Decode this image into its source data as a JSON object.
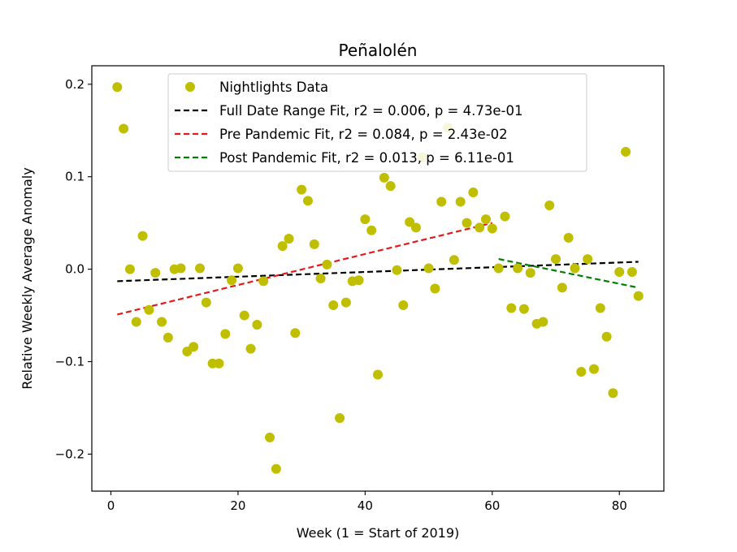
{
  "chart_data": {
    "type": "scatter",
    "title": "Peñalolén",
    "xlabel": "Week (1 = Start of 2019)",
    "ylabel": "Relative Weekly Average Anomaly",
    "xlim": [
      -3,
      87
    ],
    "ylim": [
      -0.24,
      0.22
    ],
    "xticks": [
      0,
      20,
      40,
      60,
      80
    ],
    "xtick_labels": [
      "0",
      "20",
      "40",
      "60",
      "80"
    ],
    "yticks": [
      -0.2,
      -0.1,
      0.0,
      0.1,
      0.2
    ],
    "ytick_labels": [
      "−0.2",
      "−0.1",
      "0.0",
      "0.1",
      "0.2"
    ],
    "grid": false,
    "legend_position": "top-center",
    "series": [
      {
        "name": "Nightlights Data",
        "kind": "scatter",
        "color": "#bfbf00",
        "points": [
          [
            1,
            0.197
          ],
          [
            2,
            0.152
          ],
          [
            3,
            0.0
          ],
          [
            4,
            -0.057
          ],
          [
            5,
            0.036
          ],
          [
            6,
            -0.044
          ],
          [
            7,
            -0.004
          ],
          [
            8,
            -0.057
          ],
          [
            9,
            -0.074
          ],
          [
            10,
            0.0
          ],
          [
            11,
            0.001
          ],
          [
            12,
            -0.089
          ],
          [
            13,
            -0.084
          ],
          [
            14,
            0.001
          ],
          [
            15,
            -0.036
          ],
          [
            16,
            -0.102
          ],
          [
            17,
            -0.102
          ],
          [
            18,
            -0.07
          ],
          [
            19,
            -0.012
          ],
          [
            20,
            0.001
          ],
          [
            21,
            -0.05
          ],
          [
            22,
            -0.086
          ],
          [
            23,
            -0.06
          ],
          [
            24,
            -0.013
          ],
          [
            25,
            -0.182
          ],
          [
            26,
            -0.216
          ],
          [
            27,
            0.025
          ],
          [
            28,
            0.033
          ],
          [
            29,
            -0.069
          ],
          [
            30,
            0.086
          ],
          [
            31,
            0.074
          ],
          [
            32,
            0.027
          ],
          [
            33,
            -0.01
          ],
          [
            34,
            0.005
          ],
          [
            35,
            -0.039
          ],
          [
            36,
            -0.161
          ],
          [
            37,
            -0.036
          ],
          [
            38,
            -0.013
          ],
          [
            39,
            -0.012
          ],
          [
            40,
            0.054
          ],
          [
            41,
            0.042
          ],
          [
            42,
            -0.114
          ],
          [
            43,
            0.099
          ],
          [
            44,
            0.09
          ],
          [
            45,
            -0.001
          ],
          [
            46,
            -0.039
          ],
          [
            47,
            0.051
          ],
          [
            48,
            0.045
          ],
          [
            49,
            0.121
          ],
          [
            50,
            0.001
          ],
          [
            51,
            -0.021
          ],
          [
            52,
            0.073
          ],
          [
            53,
            0.153
          ],
          [
            54,
            0.01
          ],
          [
            55,
            0.073
          ],
          [
            56,
            0.05
          ],
          [
            57,
            0.083
          ],
          [
            58,
            0.045
          ],
          [
            59,
            0.054
          ],
          [
            60,
            0.044
          ],
          [
            61,
            0.001
          ],
          [
            62,
            0.057
          ],
          [
            63,
            -0.042
          ],
          [
            64,
            0.001
          ],
          [
            65,
            -0.043
          ],
          [
            66,
            -0.004
          ],
          [
            67,
            -0.059
          ],
          [
            68,
            -0.057
          ],
          [
            69,
            0.069
          ],
          [
            70,
            0.011
          ],
          [
            71,
            -0.02
          ],
          [
            72,
            0.034
          ],
          [
            73,
            0.001
          ],
          [
            74,
            -0.111
          ],
          [
            75,
            0.011
          ],
          [
            76,
            -0.108
          ],
          [
            77,
            -0.042
          ],
          [
            78,
            -0.073
          ],
          [
            79,
            -0.134
          ],
          [
            80,
            -0.003
          ],
          [
            81,
            0.127
          ],
          [
            82,
            -0.003
          ],
          [
            83,
            -0.029
          ]
        ]
      },
      {
        "name": "Full Date Range Fit, r2 = 0.006, p = 4.73e-01",
        "kind": "line",
        "color": "#000000",
        "x": [
          1,
          83
        ],
        "y": [
          -0.013,
          0.008
        ]
      },
      {
        "name": "Pre Pandemic Fit, r2 = 0.084, p = 2.43e-02",
        "kind": "line",
        "color": "#e31a1c",
        "x": [
          1,
          60
        ],
        "y": [
          -0.049,
          0.05
        ]
      },
      {
        "name": "Post Pandemic Fit, r2 = 0.013, p = 6.11e-01",
        "kind": "line",
        "color": "#008000",
        "x": [
          61,
          83
        ],
        "y": [
          0.011,
          -0.02
        ]
      }
    ]
  }
}
